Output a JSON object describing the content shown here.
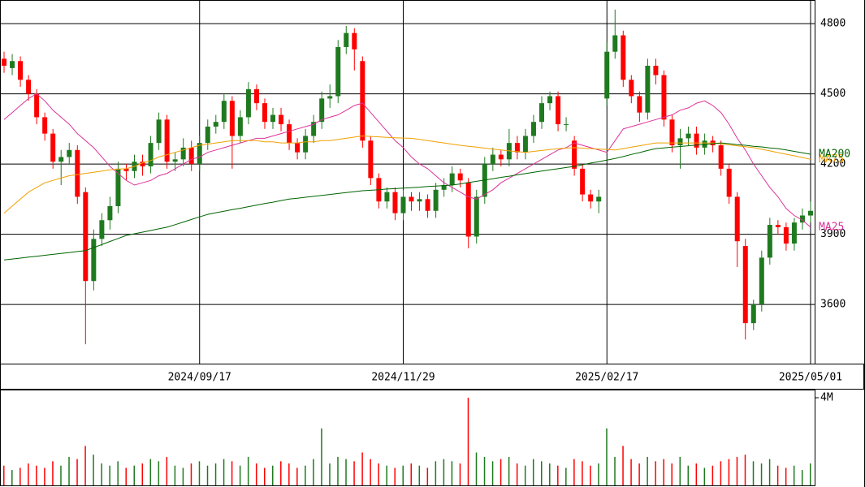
{
  "chart_data": {
    "type": "candlestick",
    "categories": [
      null,
      null,
      null,
      null,
      null,
      null,
      null,
      null,
      null,
      null,
      null,
      null,
      null,
      null,
      null,
      null,
      null,
      null,
      null,
      null,
      null,
      null,
      null,
      null,
      "2024/09/17",
      null,
      null,
      null,
      null,
      null,
      null,
      null,
      null,
      null,
      null,
      null,
      null,
      null,
      null,
      null,
      null,
      null,
      null,
      null,
      null,
      null,
      null,
      null,
      null,
      "2024/11/29",
      null,
      null,
      null,
      null,
      null,
      null,
      null,
      null,
      null,
      null,
      null,
      null,
      null,
      null,
      null,
      null,
      null,
      null,
      null,
      null,
      null,
      null,
      null,
      null,
      "2025/02/17",
      null,
      null,
      null,
      null,
      null,
      null,
      null,
      null,
      null,
      null,
      null,
      null,
      null,
      null,
      null,
      null,
      null,
      null,
      null,
      null,
      null,
      null,
      null,
      null,
      "2025/05/01"
    ],
    "open": [
      4650,
      4610,
      4640,
      4560,
      4500,
      4400,
      4330,
      4210,
      4230,
      4260,
      4080,
      3700,
      3880,
      3960,
      4020,
      4180,
      4170,
      4210,
      4190,
      4290,
      4390,
      4210,
      4220,
      4270,
      4200,
      4290,
      4360,
      4380,
      4470,
      4320,
      4400,
      4520,
      4460,
      4380,
      4410,
      4370,
      4290,
      4250,
      4320,
      4380,
      4480,
      4490,
      4700,
      4760,
      4640,
      4300,
      4140,
      4040,
      4080,
      3990,
      4060,
      4040,
      4050,
      4000,
      4090,
      4110,
      4160,
      4120,
      3890,
      4060,
      4200,
      4240,
      4220,
      4290,
      4250,
      4320,
      4380,
      4460,
      4490,
      4370,
      4300,
      4180,
      4070,
      4040,
      4480,
      4680,
      4750,
      4560,
      4490,
      4420,
      4620,
      4580,
      4390,
      4280,
      4310,
      4330,
      4270,
      4300,
      4280,
      4180,
      4060,
      3850,
      3520,
      3600,
      3800,
      3940,
      3930,
      3860,
      3950,
      3980
    ],
    "high": [
      4680,
      4670,
      4660,
      4580,
      4520,
      4420,
      4350,
      4260,
      4290,
      4280,
      4100,
      3920,
      3990,
      4060,
      4210,
      4200,
      4240,
      4240,
      4320,
      4420,
      4410,
      4250,
      4310,
      4300,
      4320,
      4390,
      4410,
      4500,
      4490,
      4430,
      4550,
      4540,
      4480,
      4440,
      4440,
      4390,
      4310,
      4350,
      4410,
      4510,
      4540,
      4730,
      4790,
      4780,
      4660,
      4320,
      4160,
      4100,
      4100,
      4090,
      4080,
      4080,
      4070,
      4120,
      4140,
      4190,
      4180,
      4140,
      4090,
      4230,
      4270,
      4260,
      4350,
      4320,
      4350,
      4410,
      4490,
      4510,
      4510,
      4400,
      4320,
      4200,
      4090,
      4090,
      4720,
      4860,
      4770,
      4580,
      4510,
      4650,
      4650,
      4600,
      4410,
      4350,
      4360,
      4360,
      4330,
      4320,
      4300,
      4200,
      4080,
      3880,
      3620,
      3830,
      3970,
      3960,
      3950,
      3970,
      4010,
      4040
    ],
    "low": [
      4590,
      4580,
      4530,
      4470,
      4370,
      4300,
      4180,
      4110,
      4200,
      4030,
      3430,
      3660,
      3850,
      3920,
      3990,
      4130,
      4140,
      4150,
      4160,
      4260,
      4180,
      4170,
      4190,
      4170,
      4170,
      4260,
      4330,
      4350,
      4180,
      4290,
      4370,
      4430,
      4350,
      4350,
      4340,
      4260,
      4220,
      4220,
      4290,
      4350,
      4440,
      4460,
      4670,
      4600,
      4270,
      4110,
      4010,
      4010,
      3960,
      3960,
      4000,
      4000,
      3970,
      3970,
      4060,
      4080,
      4100,
      3840,
      3860,
      4030,
      4170,
      4190,
      4190,
      4220,
      4220,
      4290,
      4350,
      4430,
      4340,
      4340,
      4150,
      4040,
      4010,
      3990,
      4450,
      4650,
      4530,
      4460,
      4380,
      4390,
      4540,
      4360,
      4250,
      4180,
      4280,
      4240,
      4240,
      4250,
      4150,
      4030,
      3760,
      3450,
      3490,
      3570,
      3770,
      3900,
      3830,
      3830,
      3920,
      3950
    ],
    "close": [
      4620,
      4640,
      4560,
      4500,
      4400,
      4330,
      4210,
      4230,
      4260,
      4060,
      3700,
      3880,
      3960,
      4020,
      4180,
      4170,
      4210,
      4190,
      4290,
      4390,
      4210,
      4220,
      4270,
      4200,
      4290,
      4360,
      4380,
      4470,
      4320,
      4400,
      4520,
      4460,
      4380,
      4410,
      4370,
      4290,
      4250,
      4320,
      4380,
      4480,
      4490,
      4700,
      4760,
      4690,
      4300,
      4140,
      4040,
      4080,
      3990,
      4060,
      4040,
      4050,
      4000,
      4090,
      4110,
      4160,
      4130,
      3890,
      4060,
      4200,
      4240,
      4220,
      4290,
      4250,
      4320,
      4380,
      4460,
      4490,
      4370,
      4370,
      4180,
      4070,
      4040,
      4060,
      4680,
      4750,
      4560,
      4490,
      4420,
      4620,
      4580,
      4390,
      4280,
      4310,
      4330,
      4270,
      4300,
      4280,
      4180,
      4060,
      3870,
      3520,
      3600,
      3800,
      3940,
      3930,
      3860,
      3950,
      3980,
      4000
    ],
    "up_color": "#1f7a1f",
    "down_color": "#ff0000",
    "ylim": [
      3347,
      4901
    ],
    "yticks": [
      3600,
      3900,
      4200,
      4500,
      4800
    ],
    "grid": true,
    "series": [
      {
        "name": "MA25",
        "color": "#dd3399",
        "values": [
          4390,
          4420,
          4450,
          4480,
          4500,
          4470,
          4430,
          4400,
          4370,
          4330,
          4300,
          4270,
          4230,
          4190,
          4160,
          4130,
          4110,
          4120,
          4130,
          4150,
          4160,
          4180,
          4200,
          4220,
          4230,
          4250,
          4260,
          4270,
          4280,
          4290,
          4300,
          4310,
          4310,
          4320,
          4330,
          4340,
          4350,
          4360,
          4370,
          4390,
          4400,
          4410,
          4430,
          4450,
          4460,
          4420,
          4380,
          4340,
          4300,
          4270,
          4230,
          4200,
          4180,
          4150,
          4120,
          4100,
          4080,
          4060,
          4050,
          4070,
          4090,
          4120,
          4140,
          4160,
          4180,
          4200,
          4220,
          4240,
          4260,
          4270,
          4290,
          4280,
          4270,
          4260,
          4250,
          4300,
          4350,
          4360,
          4370,
          4380,
          4390,
          4400,
          4410,
          4430,
          4440,
          4460,
          4470,
          4450,
          4420,
          4370,
          4310,
          4260,
          4200,
          4150,
          4100,
          4060,
          4010,
          3980,
          3960,
          3930
        ]
      },
      {
        "name": "MA75",
        "color": "#f0a000",
        "values": [
          3990,
          4020,
          4050,
          4080,
          4100,
          4120,
          4130,
          4140,
          4150,
          4155,
          4160,
          4165,
          4170,
          4175,
          4178,
          4180,
          4190,
          4205,
          4215,
          4230,
          4240,
          4250,
          4260,
          4270,
          4280,
          4285,
          4290,
          4295,
          4300,
          4300,
          4300,
          4300,
          4295,
          4295,
          4290,
          4290,
          4290,
          4295,
          4295,
          4300,
          4300,
          4305,
          4310,
          4315,
          4320,
          4318,
          4316,
          4314,
          4312,
          4311,
          4310,
          4305,
          4300,
          4295,
          4290,
          4285,
          4280,
          4276,
          4272,
          4268,
          4264,
          4260,
          4256,
          4253,
          4250,
          4254,
          4258,
          4262,
          4266,
          4268,
          4270,
          4268,
          4266,
          4264,
          4262,
          4260,
          4266,
          4272,
          4278,
          4284,
          4290,
          4290,
          4290,
          4290,
          4290,
          4290,
          4290,
          4290,
          4286,
          4282,
          4278,
          4274,
          4270,
          4263,
          4256,
          4249,
          4242,
          4235,
          4228,
          4220
        ]
      },
      {
        "name": "MA200",
        "color": "#006400",
        "values": [
          3790,
          3794,
          3798,
          3802,
          3806,
          3810,
          3814,
          3818,
          3822,
          3826,
          3830,
          3843,
          3856,
          3869,
          3882,
          3895,
          3902,
          3909,
          3916,
          3923,
          3930,
          3941,
          3952,
          3963,
          3974,
          3985,
          3992,
          3998,
          4005,
          4011,
          4018,
          4024,
          4031,
          4037,
          4044,
          4050,
          4054,
          4058,
          4062,
          4066,
          4070,
          4074,
          4078,
          4082,
          4086,
          4088,
          4090,
          4093,
          4095,
          4097,
          4099,
          4101,
          4104,
          4106,
          4108,
          4110,
          4115,
          4121,
          4126,
          4132,
          4137,
          4143,
          4148,
          4154,
          4159,
          4165,
          4170,
          4175,
          4180,
          4185,
          4190,
          4197,
          4204,
          4210,
          4217,
          4224,
          4232,
          4241,
          4249,
          4258,
          4266,
          4269,
          4272,
          4275,
          4278,
          4281,
          4284,
          4287,
          4290,
          4287,
          4283,
          4280,
          4276,
          4273,
          4269,
          4266,
          4260,
          4254,
          4248,
          4242
        ]
      }
    ],
    "volume": {
      "ylim": [
        0,
        4370000
      ],
      "yticks": [
        {
          "value": 4000000,
          "label": "4M"
        }
      ],
      "values": [
        900000,
        700000,
        800000,
        1000000,
        900000,
        800000,
        1100000,
        900000,
        1300000,
        1200000,
        1800000,
        1400000,
        1000000,
        900000,
        1100000,
        800000,
        900000,
        1000000,
        1200000,
        1100000,
        1300000,
        900000,
        800000,
        1000000,
        1100000,
        900000,
        1000000,
        1200000,
        1100000,
        900000,
        1300000,
        1000000,
        800000,
        900000,
        1100000,
        1000000,
        800000,
        900000,
        1200000,
        2600000,
        1000000,
        1300000,
        1200000,
        1100000,
        1500000,
        1200000,
        1000000,
        900000,
        800000,
        900000,
        1000000,
        900000,
        800000,
        1100000,
        1200000,
        1100000,
        1000000,
        4000000,
        1500000,
        1300000,
        1100000,
        1200000,
        1300000,
        1000000,
        900000,
        1200000,
        1100000,
        1000000,
        900000,
        800000,
        1200000,
        1100000,
        900000,
        1000000,
        2600000,
        1300000,
        1800000,
        1200000,
        1000000,
        1300000,
        1100000,
        1200000,
        1000000,
        1300000,
        900000,
        1000000,
        800000,
        900000,
        1100000,
        1200000,
        1300000,
        1400000,
        1100000,
        1000000,
        1200000,
        900000,
        800000,
        900000,
        700000,
        1000000
      ]
    }
  }
}
